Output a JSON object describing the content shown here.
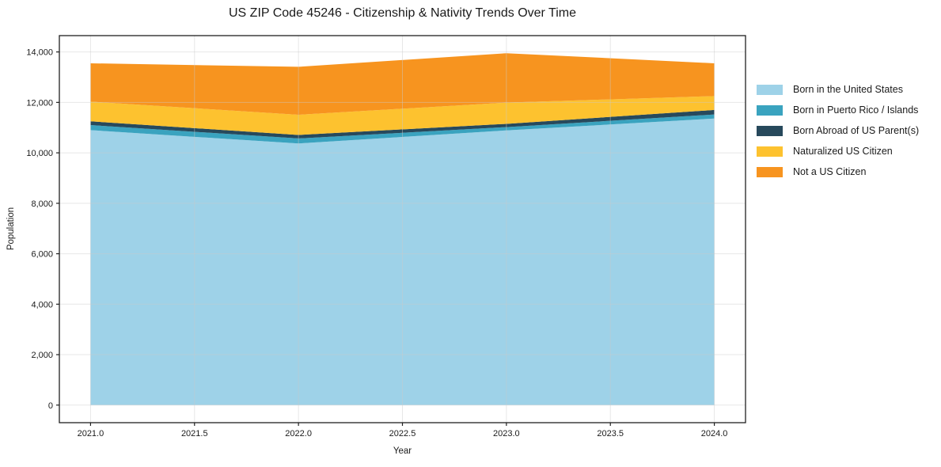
{
  "title": "US ZIP Code 45246 - Citizenship & Nativity Trends Over Time",
  "chart_data": {
    "type": "area",
    "stacked": true,
    "title": "US ZIP Code 45246 - Citizenship & Nativity Trends Over Time",
    "xlabel": "Year",
    "ylabel": "Population",
    "x": [
      2021,
      2022,
      2023,
      2024
    ],
    "series": [
      {
        "name": "Born in the United States",
        "color": "#9ed2e8",
        "values": [
          10900,
          10370,
          10890,
          11360
        ]
      },
      {
        "name": "Born in Puerto Rico / Islands",
        "color": "#3aa3bf",
        "values": [
          200,
          200,
          130,
          160
        ]
      },
      {
        "name": "Born Abroad of US Parent(s)",
        "color": "#27495c",
        "values": [
          150,
          140,
          130,
          180
        ]
      },
      {
        "name": "Naturalized US Citizen",
        "color": "#fdc22f",
        "values": [
          780,
          800,
          840,
          550
        ]
      },
      {
        "name": "Not a US Citizen",
        "color": "#f7941f",
        "values": [
          1520,
          1900,
          1960,
          1300
        ]
      }
    ],
    "xlim": [
      2020.85,
      2024.15
    ],
    "ylim": [
      -697,
      14647
    ],
    "xticks": [
      2021.0,
      2021.5,
      2022.0,
      2022.5,
      2023.0,
      2023.5,
      2024.0
    ],
    "xtick_labels": [
      "2021.0",
      "2021.5",
      "2022.0",
      "2022.5",
      "2023.0",
      "2023.5",
      "2024.0"
    ],
    "yticks": [
      0,
      2000,
      4000,
      6000,
      8000,
      10000,
      12000,
      14000
    ],
    "ytick_labels": [
      "0",
      "2,000",
      "4,000",
      "6,000",
      "8,000",
      "10,000",
      "12,000",
      "14,000"
    ],
    "grid": true,
    "legend_position": "right-outside"
  },
  "colors": {
    "background": "#ffffff",
    "spine": "#1f1f1f",
    "grid": "#c9c9c9",
    "text": "#1a1a1a"
  }
}
